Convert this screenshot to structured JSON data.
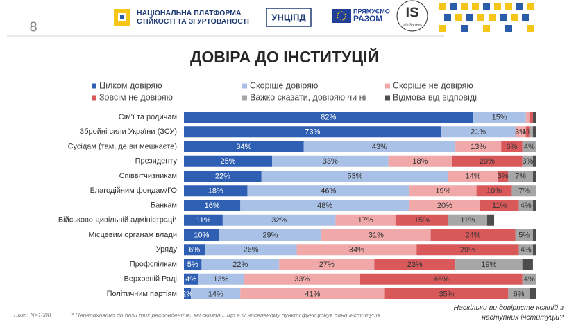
{
  "header": {
    "page_number": "8",
    "platform_line1": "НАЦІОНАЛЬНА ПЛАТФОРМА",
    "platform_line2": "СТІЙКОСТІ ТА ЗГУРТОВАНОСТІ",
    "logo_uncipd": "УНЦІПД",
    "logo_eu_line1": "ПРЯМУЄМО",
    "logo_eu_line2": "РАЗОМ",
    "logo_is": "IS",
    "logo_is_sub": "Info Sapiens"
  },
  "chart_data": {
    "type": "stacked-bar-horizontal",
    "title": "ДОВІРА ДО ІНСТИТУЦІЙ",
    "xlim": [
      0,
      100
    ],
    "categories": [
      "Сім'ї та родичам",
      "Збройні сили України (ЗСУ)",
      "Сусідам (там, де ви мешкаєте)",
      "Президенту",
      "Співвітчизникам",
      "Благодійним фондам/ГО",
      "Банкам",
      "Військово-цивільній адміністраці*",
      "Місцевим органам влади",
      "Уряду",
      "Профспілкам",
      "Верховній Раді",
      "Політичним партіям"
    ],
    "series": [
      {
        "name": "Цілком довіряю",
        "color": "#2f5fb3",
        "values": [
          82,
          73,
          34,
          25,
          22,
          18,
          16,
          11,
          10,
          6,
          5,
          4,
          2
        ],
        "value_labels": [
          "82%",
          "73%",
          "34%",
          "25%",
          "22%",
          "18%",
          "16%",
          "11%",
          "10%",
          "6%",
          "5%",
          "4%",
          "2%"
        ]
      },
      {
        "name": "Скоріше довіряю",
        "color": "#a9c1e6",
        "values": [
          15,
          21,
          43,
          33,
          53,
          46,
          48,
          32,
          29,
          26,
          22,
          13,
          14
        ],
        "value_labels": [
          "15%",
          "21%",
          "43%",
          "33%",
          "53%",
          "46%",
          "48%",
          "32%",
          "29%",
          "26%",
          "22%",
          "13%",
          "14%"
        ]
      },
      {
        "name": "Скоріше не довіряю",
        "color": "#f0a8a8",
        "values": [
          1,
          3,
          13,
          18,
          14,
          19,
          20,
          17,
          31,
          34,
          27,
          33,
          41
        ],
        "value_labels": [
          null,
          "3%",
          "13%",
          "18%",
          "14%",
          "19%",
          "20%",
          "17%",
          "31%",
          "34%",
          "27%",
          "33%",
          "41%"
        ]
      },
      {
        "name": "Зовсім не довіряю",
        "color": "#d9595b",
        "values": [
          1,
          1,
          6,
          20,
          3,
          10,
          11,
          15,
          24,
          29,
          23,
          46,
          35
        ],
        "value_labels": [
          null,
          "1%",
          "6%",
          "20%",
          "3%",
          "10%",
          "11%",
          "15%",
          "24%",
          "29%",
          "23%",
          "46%",
          "35%"
        ]
      },
      {
        "name": "Важко сказати, довіряю чи ні",
        "color": "#a6a6a6",
        "values": [
          0,
          1,
          4,
          3,
          7,
          7,
          4,
          11,
          5,
          4,
          19,
          4,
          6
        ],
        "value_labels": [
          null,
          null,
          "4%",
          "3%",
          "7%",
          "7%",
          "4%",
          "11%",
          "5%",
          "4%",
          "19%",
          "4%",
          "6%"
        ]
      },
      {
        "name": "Відмова від відповіді",
        "color": "#4d4d4d",
        "values": [
          1,
          1,
          0,
          1,
          1,
          0,
          1,
          2,
          1,
          1,
          3,
          0,
          2
        ],
        "value_labels": [
          null,
          null,
          null,
          null,
          null,
          null,
          null,
          null,
          null,
          null,
          null,
          null,
          null
        ]
      }
    ]
  },
  "footer": {
    "base": "База: N=1000",
    "note": "* Перераховано до бази тих респондентів, які сказали, що в їх населеному пункті функціонує дана інституція",
    "question": [
      "Наскільки ви довіряєте кожній з",
      "наступних інституцій?"
    ]
  }
}
